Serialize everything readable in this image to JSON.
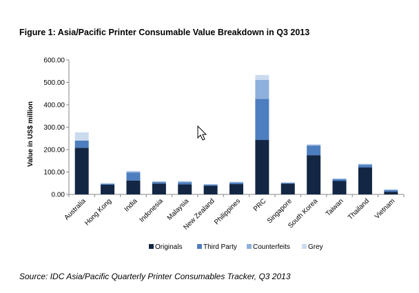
{
  "figure_title": "Figure 1:  Asia/Pacific Printer Consumable Value Breakdown  in Q3 2013",
  "source_note": "Source: IDC Asia/Pacific Quarterly Printer Consumables Tracker, Q3 2013",
  "colors": {
    "Originals": "#132744",
    "Third Party": "#4d7ebf",
    "Counterfeits": "#8eb0dc",
    "Grey": "#cbdbee"
  },
  "chart_data": {
    "type": "bar",
    "stacked": true,
    "title": "",
    "xlabel": "",
    "ylabel": "Value in US$ million",
    "ylim": [
      0,
      600
    ],
    "yticks": [
      0,
      100,
      200,
      300,
      400,
      500,
      600
    ],
    "ytick_labels": [
      "0.00",
      "100.00",
      "200.00",
      "300.00",
      "400.00",
      "500.00",
      "600.00"
    ],
    "legend_position": "bottom",
    "grid": false,
    "categories": [
      "Australia",
      "Hong Kong",
      "India",
      "Indonesia",
      "Malaysia",
      "New Zealand",
      "Philippines",
      "PRC",
      "Singapore",
      "South Korea",
      "Taiwan",
      "Thailand",
      "Vietnam"
    ],
    "series": [
      {
        "name": "Originals",
        "values": [
          208,
          43,
          62,
          48,
          45,
          39,
          46,
          243,
          48,
          175,
          60,
          120,
          12
        ]
      },
      {
        "name": "Third Party",
        "values": [
          32,
          4,
          35,
          7,
          9,
          4,
          7,
          183,
          3,
          43,
          8,
          12,
          7
        ]
      },
      {
        "name": "Counterfeits",
        "values": [
          0,
          2,
          5,
          2,
          3,
          2,
          2,
          85,
          2,
          3,
          2,
          3,
          3
        ]
      },
      {
        "name": "Grey",
        "values": [
          37,
          2,
          3,
          2,
          3,
          1,
          2,
          22,
          1,
          3,
          2,
          2,
          1
        ]
      }
    ]
  }
}
